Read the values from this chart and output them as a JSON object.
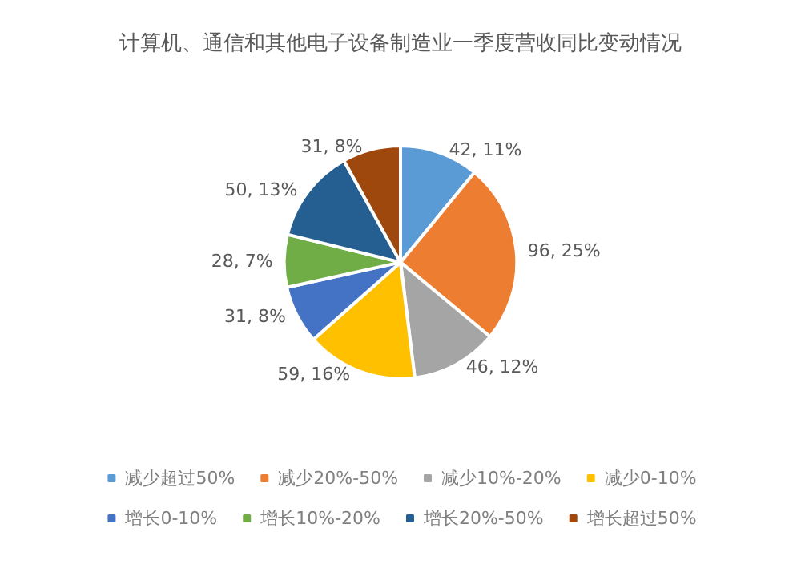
{
  "chart_data": {
    "type": "pie",
    "title": "计算机、通信和其他电子设备制造业一季度营收同比变动情况",
    "categories": [
      "减少超过50%",
      "减少20%-50%",
      "减少10%-20%",
      "减少0-10%",
      "增长0-10%",
      "增长10%-20%",
      "增长20%-50%",
      "增长超过50%"
    ],
    "values": [
      42,
      96,
      46,
      59,
      31,
      28,
      50,
      31
    ],
    "value_labels": [
      "42, 11%",
      "96, 25%",
      "46, 12%",
      "59, 16%",
      "31, 8%",
      "28, 7%",
      "50, 13%",
      "31, 8%"
    ],
    "colors": [
      "#5b9bd5",
      "#ed7d31",
      "#a5a5a5",
      "#ffc000",
      "#4472c4",
      "#70ad47",
      "#255e91",
      "#9e480e"
    ],
    "legend": "bottom"
  }
}
